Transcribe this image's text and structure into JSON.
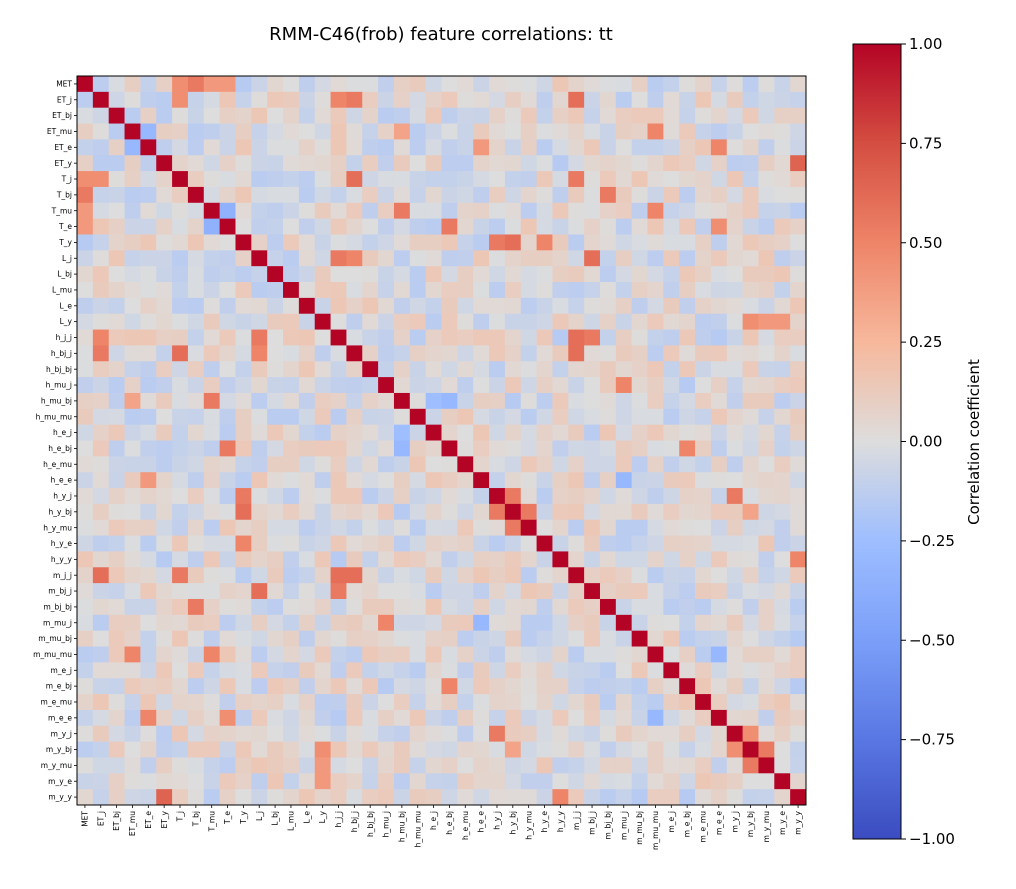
{
  "chart_data": {
    "type": "heatmap",
    "title": "RMM-C46(frob) feature correlations: tt",
    "colorbar_label": "Correlation coefficient",
    "colorbar_ticks": [
      "1.00",
      "0.75",
      "0.50",
      "0.25",
      "0.00",
      "−0.25",
      "−0.50",
      "−0.75",
      "−1.00"
    ],
    "vmin": -1.0,
    "vmax": 1.0,
    "colormap": "coolwarm",
    "features": [
      "MET",
      "ET_j",
      "ET_bj",
      "ET_mu",
      "ET_e",
      "ET_y",
      "T_j",
      "T_bj",
      "T_mu",
      "T_e",
      "T_y",
      "L_j",
      "L_bj",
      "L_mu",
      "L_e",
      "L_y",
      "h_j_j",
      "h_bj_j",
      "h_bj_bj",
      "h_mu_j",
      "h_mu_bj",
      "h_mu_mu",
      "h_e_j",
      "h_e_bj",
      "h_e_mu",
      "h_e_e",
      "h_y_j",
      "h_y_bj",
      "h_y_mu",
      "h_y_e",
      "h_y_y",
      "m_j_j",
      "m_bj_j",
      "m_bj_bj",
      "m_mu_j",
      "m_mu_bj",
      "m_mu_mu",
      "m_e_j",
      "m_e_bj",
      "m_e_mu",
      "m_e_e",
      "m_y_j",
      "m_y_bj",
      "m_y_mu",
      "m_y_e",
      "m_y_y"
    ],
    "correlations_note": "diagonal = 1.00; selected strong off-diagonal pairs listed below (all others approx. -0.3 to 0.3)",
    "strong_pairs": [
      {
        "a": "MET",
        "b": "T_j",
        "r": 0.45
      },
      {
        "a": "MET",
        "b": "T_bj",
        "r": 0.55
      },
      {
        "a": "MET",
        "b": "T_mu",
        "r": 0.4
      },
      {
        "a": "MET",
        "b": "T_e",
        "r": 0.4
      },
      {
        "a": "ET_j",
        "b": "T_j",
        "r": 0.45
      },
      {
        "a": "ET_j",
        "b": "h_j_j",
        "r": 0.5
      },
      {
        "a": "ET_j",
        "b": "h_bj_j",
        "r": 0.55
      },
      {
        "a": "ET_j",
        "b": "m_j_j",
        "r": 0.6
      },
      {
        "a": "ET_mu",
        "b": "h_mu_bj",
        "r": 0.35
      },
      {
        "a": "ET_mu",
        "b": "m_mu_mu",
        "r": 0.5
      },
      {
        "a": "ET_e",
        "b": "h_e_e",
        "r": 0.4
      },
      {
        "a": "ET_e",
        "b": "m_e_e",
        "r": 0.5
      },
      {
        "a": "ET_y",
        "b": "m_y_y",
        "r": 0.65
      },
      {
        "a": "T_j",
        "b": "h_bj_j",
        "r": 0.6
      },
      {
        "a": "T_j",
        "b": "m_j_j",
        "r": 0.55
      },
      {
        "a": "T_bj",
        "b": "m_bj_bj",
        "r": 0.55
      },
      {
        "a": "T_mu",
        "b": "h_mu_bj",
        "r": 0.55
      },
      {
        "a": "T_mu",
        "b": "m_mu_mu",
        "r": 0.5
      },
      {
        "a": "T_e",
        "b": "h_e_bj",
        "r": 0.55
      },
      {
        "a": "T_e",
        "b": "m_e_e",
        "r": 0.45
      },
      {
        "a": "T_y",
        "b": "h_y_bj",
        "r": 0.6
      },
      {
        "a": "T_y",
        "b": "h_y_j",
        "r": 0.55
      },
      {
        "a": "T_y",
        "b": "h_y_e",
        "r": 0.5
      },
      {
        "a": "L_j",
        "b": "h_j_j",
        "r": 0.55
      },
      {
        "a": "L_j",
        "b": "h_bj_j",
        "r": 0.5
      },
      {
        "a": "L_j",
        "b": "m_bj_j",
        "r": 0.6
      },
      {
        "a": "L_y",
        "b": "m_y_bj",
        "r": 0.45
      },
      {
        "a": "L_y",
        "b": "m_y_mu",
        "r": 0.4
      },
      {
        "a": "L_y",
        "b": "m_y_e",
        "r": 0.4
      },
      {
        "a": "h_j_j",
        "b": "m_j_j",
        "r": 0.6
      },
      {
        "a": "h_j_j",
        "b": "m_bj_j",
        "r": 0.55
      },
      {
        "a": "h_bj_j",
        "b": "m_j_j",
        "r": 0.6
      },
      {
        "a": "h_mu_j",
        "b": "m_mu_j",
        "r": 0.5
      },
      {
        "a": "h_e_bj",
        "b": "m_e_bj",
        "r": 0.5
      },
      {
        "a": "h_y_j",
        "b": "h_y_bj",
        "r": 0.55
      },
      {
        "a": "h_y_bj",
        "b": "h_y_mu",
        "r": 0.55
      },
      {
        "a": "h_y_j",
        "b": "m_y_j",
        "r": 0.55
      },
      {
        "a": "h_y_bj",
        "b": "m_y_bj",
        "r": 0.35
      },
      {
        "a": "m_y_j",
        "b": "m_y_bj",
        "r": 0.45
      },
      {
        "a": "m_y_bj",
        "b": "m_y_mu",
        "r": 0.55
      },
      {
        "a": "h_y_y",
        "b": "m_y_y",
        "r": 0.5
      },
      {
        "a": "ET_mu",
        "b": "ET_e",
        "r": -0.3
      },
      {
        "a": "T_mu",
        "b": "T_e",
        "r": -0.35
      },
      {
        "a": "h_mu_bj",
        "b": "h_e_bj",
        "r": -0.3
      },
      {
        "a": "h_e_j",
        "b": "h_mu_bj",
        "r": -0.25
      },
      {
        "a": "m_mu_mu",
        "b": "m_e_e",
        "r": -0.3
      },
      {
        "a": "h_e_e",
        "b": "m_mu_j",
        "r": -0.3
      }
    ]
  }
}
